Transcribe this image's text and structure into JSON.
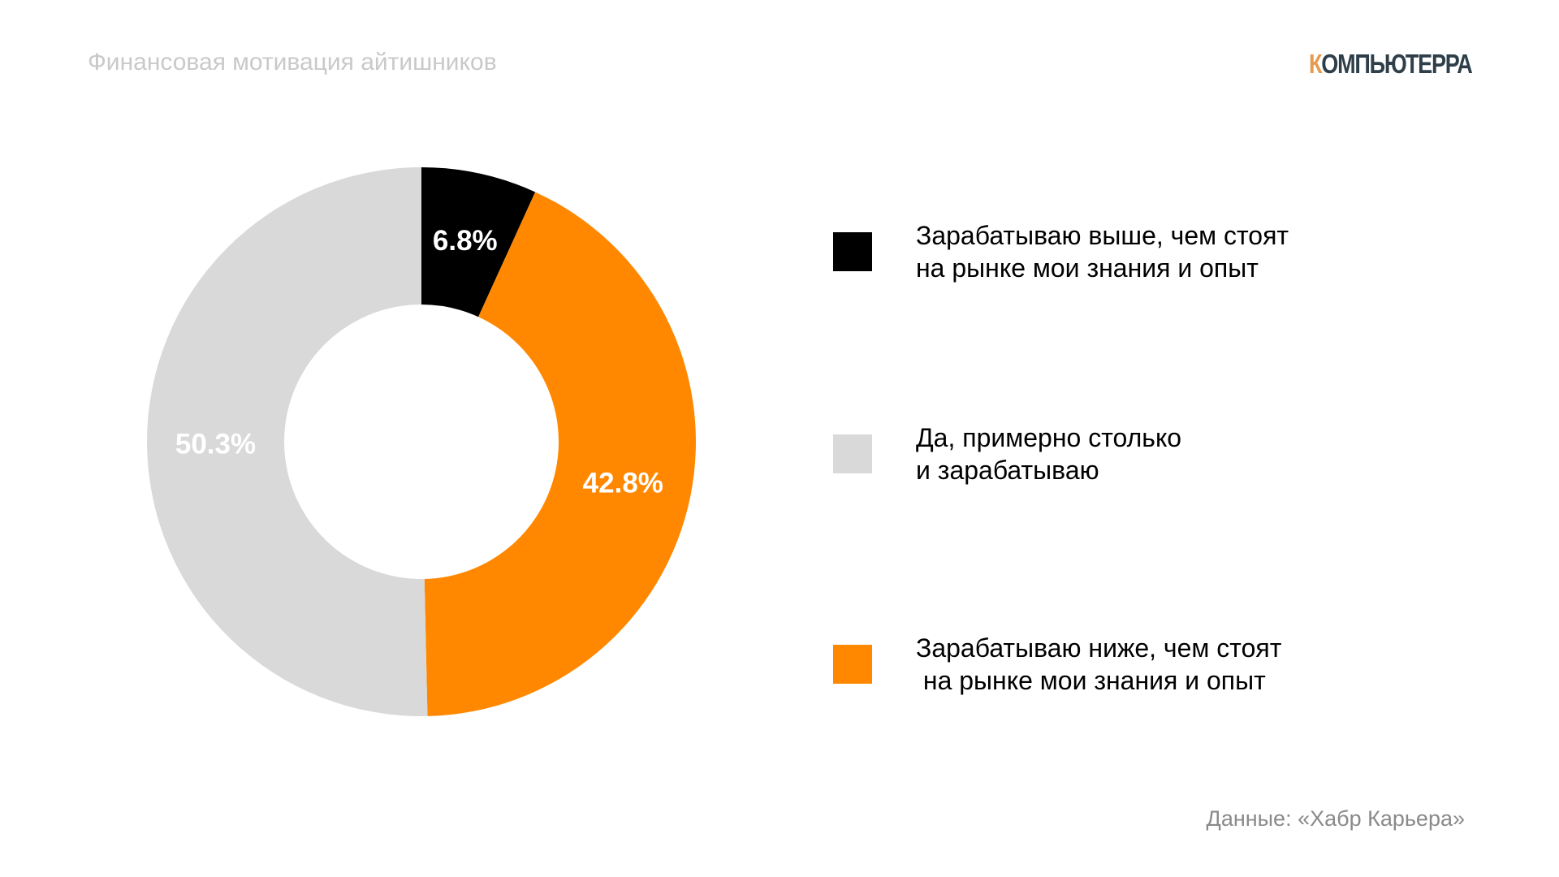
{
  "header": {
    "title": "Финансовая мотивация айтишников",
    "logo_text": "КОМПЬЮТЕРРА",
    "logo_first": "К",
    "logo_rest": "ОМПЬЮТЕРРА"
  },
  "chart_data": {
    "type": "pie",
    "donut": true,
    "title": "Финансовая мотивация айтишников",
    "legend_position": "right",
    "slices": [
      {
        "label": "Зарабатываю выше, чем стоят\nна рынке мои знания и опыт",
        "value": 6.8,
        "value_label": "6.8%",
        "color": "#000000"
      },
      {
        "label": "Зарабатываю ниже, чем стоят\n на рынке мои знания и опыт",
        "value": 42.8,
        "value_label": "42.8%",
        "color": "#FF8800"
      },
      {
        "label": "Да, примерно столько\nи зарабатываю",
        "value": 50.3,
        "value_label": "50.3%",
        "color": "#D9D9D9"
      }
    ],
    "legend_order": [
      0,
      2,
      1
    ]
  },
  "footer": {
    "source": "Данные: «Хабр Карьера»"
  }
}
